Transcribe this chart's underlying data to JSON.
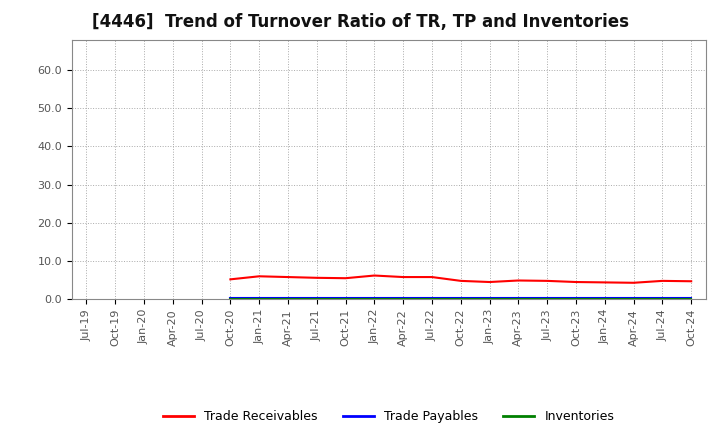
{
  "title": "[4446]  Trend of Turnover Ratio of TR, TP and Inventories",
  "title_fontsize": 12,
  "background_color": "#ffffff",
  "plot_bg_color": "#ffffff",
  "ylim": [
    0.0,
    68.0
  ],
  "yticks": [
    0.0,
    10.0,
    20.0,
    30.0,
    40.0,
    50.0,
    60.0
  ],
  "x_labels": [
    "Jul-19",
    "Oct-19",
    "Jan-20",
    "Apr-20",
    "Jul-20",
    "Oct-20",
    "Jan-21",
    "Apr-21",
    "Jul-21",
    "Oct-21",
    "Jan-22",
    "Apr-22",
    "Jul-22",
    "Oct-22",
    "Jan-23",
    "Apr-23",
    "Jul-23",
    "Oct-23",
    "Jan-24",
    "Apr-24",
    "Jul-24",
    "Oct-24"
  ],
  "trade_receivables": [
    null,
    null,
    null,
    null,
    null,
    5.2,
    6.0,
    5.8,
    5.6,
    5.5,
    6.2,
    5.8,
    5.8,
    4.8,
    4.5,
    4.9,
    4.8,
    4.5,
    4.4,
    4.3,
    4.8,
    4.7
  ],
  "trade_payables": [
    null,
    null,
    null,
    null,
    null,
    0.25,
    0.25,
    0.25,
    0.25,
    0.25,
    0.25,
    0.25,
    0.25,
    0.25,
    0.25,
    0.25,
    0.25,
    0.25,
    0.25,
    0.25,
    0.25,
    0.25
  ],
  "inventories": [
    null,
    null,
    null,
    null,
    null,
    0.05,
    0.05,
    0.05,
    0.05,
    0.05,
    0.05,
    0.05,
    0.05,
    0.05,
    0.05,
    0.05,
    0.05,
    0.05,
    0.05,
    0.05,
    0.05,
    0.05
  ],
  "line_colors": {
    "trade_receivables": "#ff0000",
    "trade_payables": "#0000ff",
    "inventories": "#008000"
  },
  "legend_labels": [
    "Trade Receivables",
    "Trade Payables",
    "Inventories"
  ],
  "legend_fontsize": 9,
  "tick_fontsize": 8,
  "tick_color": "#555555",
  "grid_color": "#aaaaaa",
  "grid_linestyle": ":",
  "grid_linewidth": 0.7,
  "line_width": 1.5
}
